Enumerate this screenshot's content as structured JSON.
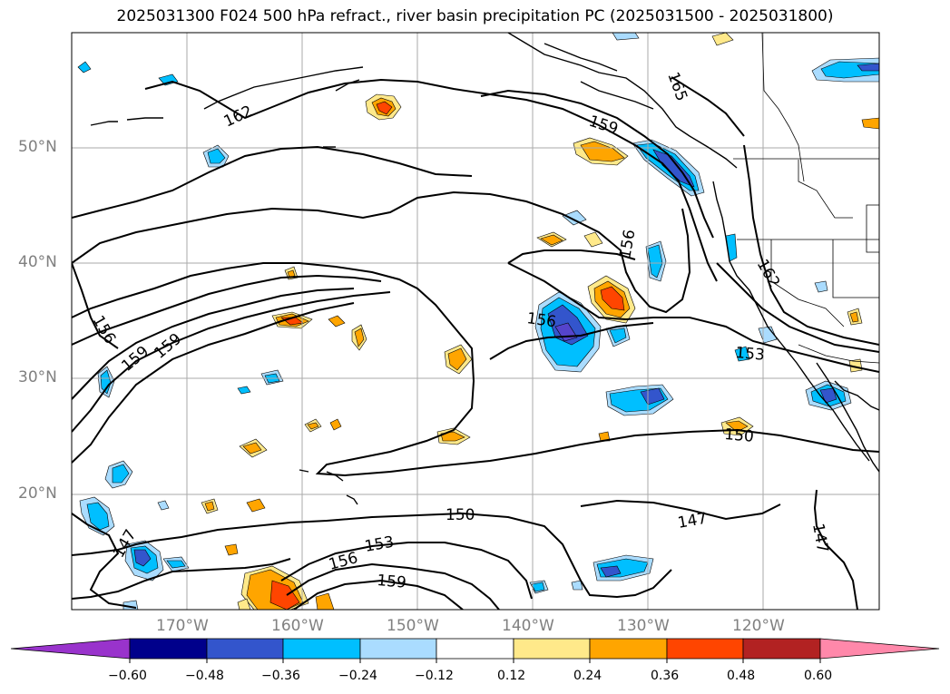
{
  "title": "2025031300 F024 500 hPa refract., river basin precipitation PC (2025031500 - 2025031800)",
  "lat_labels": [
    "50°N",
    "40°N",
    "30°N",
    "20°N"
  ],
  "lon_labels": [
    "170°W",
    "160°W",
    "150°W",
    "140°W",
    "130°W",
    "120°W"
  ],
  "contour_labels": [
    "162",
    "159",
    "165",
    "156",
    "162",
    "156",
    "159",
    "159",
    "156",
    "153",
    "150",
    "150",
    "147",
    "147",
    "147",
    "153",
    "156",
    "159"
  ],
  "colorbar": {
    "ticks": [
      "−0.60",
      "−0.48",
      "−0.36",
      "−0.24",
      "−0.12",
      "0.12",
      "0.24",
      "0.36",
      "0.48",
      "0.60"
    ],
    "colors": [
      "#9933cc",
      "#00008b",
      "#3355cc",
      "#00bfff",
      "#aadcff",
      "#ffffff",
      "#ffe98a",
      "#ffa500",
      "#ff4500",
      "#b22222",
      "#ff88aa"
    ]
  },
  "palette": {
    "neg_light": "#aadcff",
    "neg_mid": "#00bfff",
    "neg_strong": "#3355cc",
    "neg_max": "#5544cc",
    "pos_light": "#ffe98a",
    "pos_mid": "#ffa500",
    "pos_strong": "#ff4500"
  }
}
